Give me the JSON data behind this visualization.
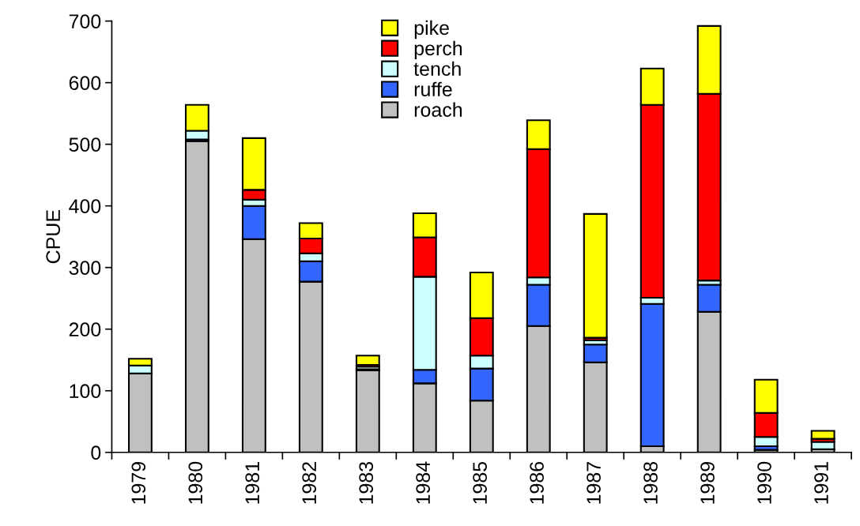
{
  "chart_data": {
    "type": "bar",
    "stacked": true,
    "ylabel": "CPUE",
    "categories": [
      "1979",
      "1980",
      "1981",
      "1982",
      "1983",
      "1984",
      "1985",
      "1986",
      "1987",
      "1988",
      "1989",
      "1990",
      "1991"
    ],
    "series": [
      {
        "name": "roach",
        "color": "#c0c0c0",
        "values": [
          128,
          505,
          346,
          277,
          133,
          112,
          84,
          205,
          146,
          10,
          228,
          4,
          5
        ]
      },
      {
        "name": "ruffe",
        "color": "#3366ff",
        "values": [
          null,
          3,
          54,
          33,
          2,
          22,
          52,
          67,
          29,
          231,
          44,
          6,
          null
        ]
      },
      {
        "name": "tench",
        "color": "#ccffff",
        "values": [
          13,
          14,
          10,
          13,
          4,
          151,
          21,
          12,
          7,
          10,
          7,
          15,
          12
        ]
      },
      {
        "name": "perch",
        "color": "#ff0000",
        "values": [
          null,
          null,
          16,
          24,
          3,
          64,
          61,
          208,
          4,
          313,
          303,
          39,
          5
        ]
      },
      {
        "name": "pike",
        "color": "#ffff00",
        "values": [
          11,
          42,
          84,
          25,
          15,
          39,
          74,
          47,
          201,
          59,
          110,
          54,
          13
        ]
      }
    ],
    "ylim": [
      0,
      700
    ],
    "yticks": [
      0,
      100,
      200,
      300,
      400,
      500,
      600,
      700
    ],
    "grid": false,
    "legend": "top"
  }
}
